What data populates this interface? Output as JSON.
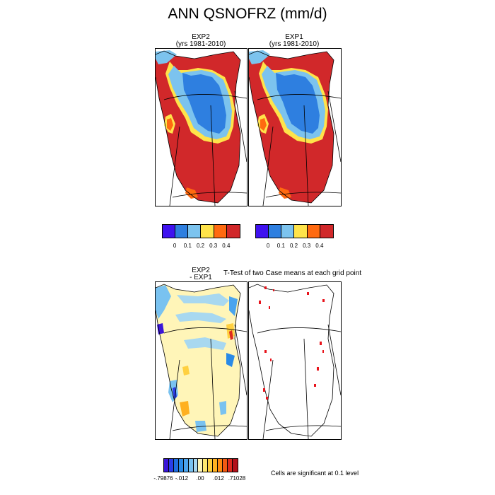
{
  "page": {
    "title": "ANN QSNOFRZ (mm/d)"
  },
  "panels": {
    "exp2": {
      "line1": "EXP2",
      "line2": "(yrs 1981-2010)"
    },
    "exp1": {
      "line1": "EXP1",
      "line2": "(yrs 1981-2010)"
    },
    "diff": {
      "line1": "EXP2",
      "line2": "- EXP1"
    },
    "ttest": {
      "title": "T-Test of two Case means at each grid point"
    }
  },
  "colorbar_top": {
    "colors": [
      "#3f12f0",
      "#2e7fe0",
      "#7cc3ee",
      "#ffe34a",
      "#ff6a10",
      "#d1282a"
    ],
    "labels": [
      "0",
      "0.1",
      "0.2",
      "0.3",
      "0.4"
    ]
  },
  "colorbar_diff": {
    "colors": [
      "#3a16d8",
      "#2a3de8",
      "#1e6ee0",
      "#2a8ae6",
      "#4aa4ee",
      "#79c2f0",
      "#a8d8f0",
      "#fff5b8",
      "#ffe870",
      "#ffd040",
      "#ffb020",
      "#ff8a10",
      "#f25a12",
      "#dc2a1e",
      "#b2101a"
    ],
    "labels": [
      "-.79876",
      "-.012",
      ".00",
      ".012",
      ".71028"
    ]
  },
  "note": "Cells are significant at 0.1 level",
  "chart_data": [
    {
      "type": "heatmap",
      "title": "EXP2",
      "subtitle": "(yrs 1981-2010)",
      "units": "mm/d",
      "color_levels": [
        0,
        0.1,
        0.2,
        0.3,
        0.4
      ]
    },
    {
      "type": "heatmap",
      "title": "EXP1",
      "subtitle": "(yrs 1981-2010)",
      "units": "mm/d",
      "color_levels": [
        0,
        0.1,
        0.2,
        0.3,
        0.4
      ]
    },
    {
      "type": "heatmap",
      "title": "EXP2 - EXP1",
      "color_levels": [
        -0.79876,
        -0.012,
        0.0,
        0.012,
        0.71028
      ]
    },
    {
      "type": "heatmap",
      "title": "T-Test of two Case means at each grid point",
      "annotation": "Cells are significant at 0.1 level"
    }
  ]
}
